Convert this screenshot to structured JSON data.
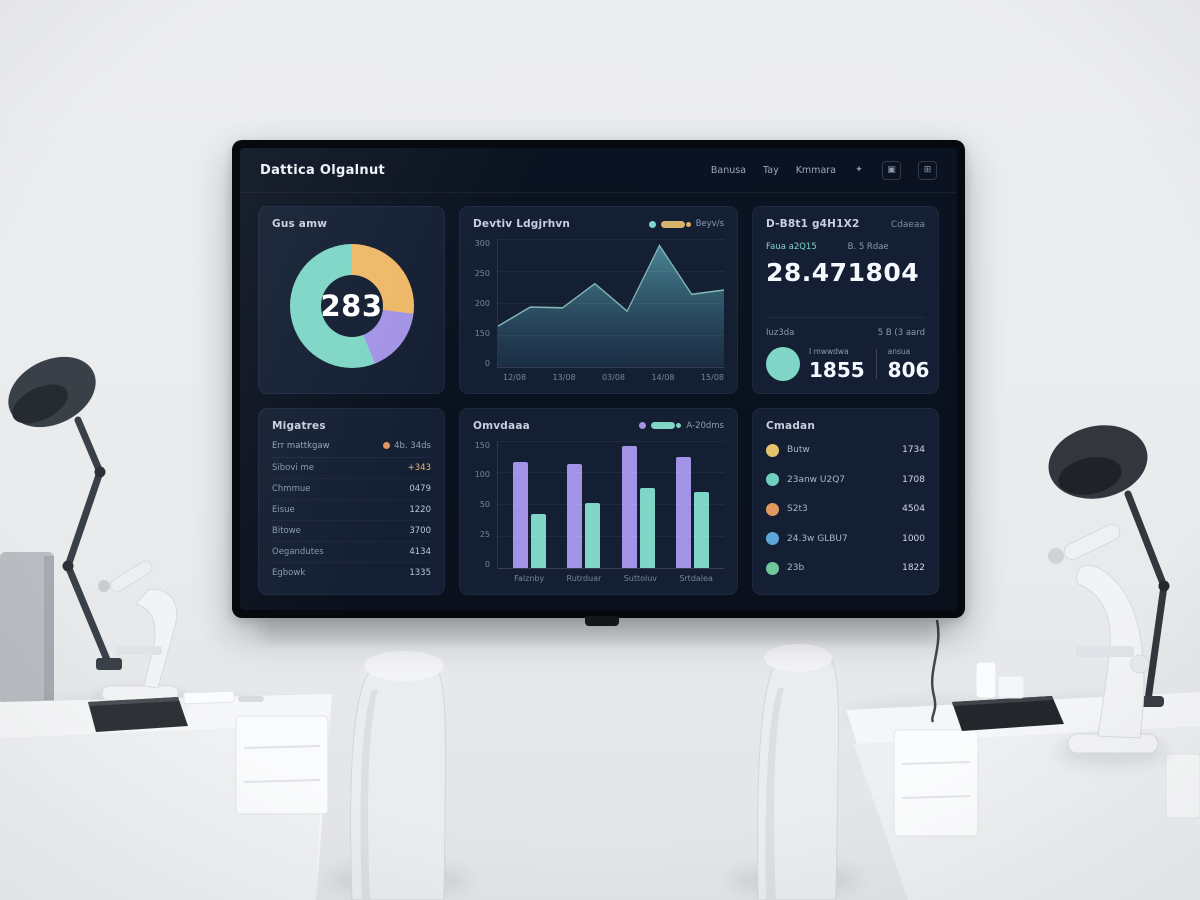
{
  "app": {
    "title": "Dattica Olgalnut"
  },
  "nav": {
    "items": [
      "Banusa",
      "Tay",
      "Kmmara"
    ]
  },
  "cards": {
    "gauge": {
      "title": "Gus amw",
      "value": "283"
    },
    "trend": {
      "title": "Devtiv Ldgjrhvn",
      "legend": "Beyv/s"
    },
    "stats": {
      "title": "D-B8t1 g4H1X2",
      "link": "Cdaeaa",
      "primary": [
        {
          "label": "Faua a2Q15",
          "value": "28.47",
          "accent": true
        },
        {
          "label": "B. 5 Rdae",
          "value": "1804",
          "accent": false
        }
      ],
      "section": {
        "label": "Iuz3da",
        "hint": "5 B (3 aard"
      },
      "secondary": [
        {
          "caption": "I mwwdwa",
          "value": "1855"
        },
        {
          "caption": "ansua",
          "value": "806"
        }
      ]
    },
    "list": {
      "title": "Migatres",
      "subtitle": "Err mattkgaw",
      "legend": "4b. 34ds",
      "rows": [
        {
          "label": "Sibovi me",
          "value": "+343",
          "accent": true
        },
        {
          "label": "Chmmue",
          "value": "0479",
          "accent": false
        },
        {
          "label": "Eisue",
          "value": "1220",
          "accent": false
        },
        {
          "label": "Bitowe",
          "value": "3700",
          "accent": false
        },
        {
          "label": "Oegandutes",
          "value": "4134",
          "accent": false
        },
        {
          "label": "Egbowk",
          "value": "1335",
          "accent": false
        }
      ]
    },
    "bars": {
      "title": "Omvdaaa",
      "legend": "A-20dms"
    },
    "categories": {
      "title": "Cmadan",
      "rows": [
        {
          "label": "Butw",
          "value": "1734",
          "color": "#e4c36a"
        },
        {
          "label": "23anw U2Q7",
          "value": "1708",
          "color": "#6fcfbf"
        },
        {
          "label": "S2t3",
          "value": "4504",
          "color": "#e09a5d"
        },
        {
          "label": "24.3w GLBU7",
          "value": "1000",
          "color": "#5ba7d9"
        },
        {
          "label": "23b",
          "value": "1822",
          "color": "#72c79a"
        }
      ]
    }
  },
  "colors": {
    "teal": "#7fd6c6",
    "orange": "#eeb968",
    "purple": "#a393e6",
    "screen_bg": "#0b1322",
    "card_bg": "#141f33"
  },
  "chart_data": [
    {
      "type": "pie",
      "title": "Gus amw",
      "donut": true,
      "center_value": 283,
      "slices": [
        {
          "name": "orange",
          "value": 27,
          "color": "#eeb968"
        },
        {
          "name": "purple",
          "value": 17,
          "color": "#a393e6"
        },
        {
          "name": "teal",
          "value": 56,
          "color": "#7fd6c6"
        }
      ]
    },
    {
      "type": "area",
      "title": "Devtiv Ldgjrhvn",
      "values": [
        95,
        140,
        138,
        195,
        130,
        285,
        170,
        180
      ],
      "ylim": [
        0,
        300
      ],
      "y_ticks": [
        "300",
        "250",
        "200",
        "150",
        "0"
      ],
      "x_ticks": [
        "12/08",
        "13/08",
        "03/08",
        "14/08",
        "15/08"
      ],
      "fill_color": "#44808f",
      "line_color": "#9ad6cd",
      "grid": true,
      "legend_position": "top-right"
    },
    {
      "type": "bar",
      "title": "Omvdaaa",
      "categories": [
        "Falznby",
        "Rutrduar",
        "Suttoluv",
        "Srtdalea"
      ],
      "series": [
        {
          "name": "series-a",
          "color": "#a393e6",
          "values": [
            125,
            122,
            143,
            131
          ]
        },
        {
          "name": "series-b",
          "color": "#7fd6c6",
          "values": [
            64,
            76,
            94,
            89
          ]
        }
      ],
      "ylim": [
        0,
        150
      ],
      "y_ticks": [
        "150",
        "100",
        "50",
        "25",
        "0"
      ],
      "grid": true,
      "legend_position": "top-right"
    }
  ]
}
